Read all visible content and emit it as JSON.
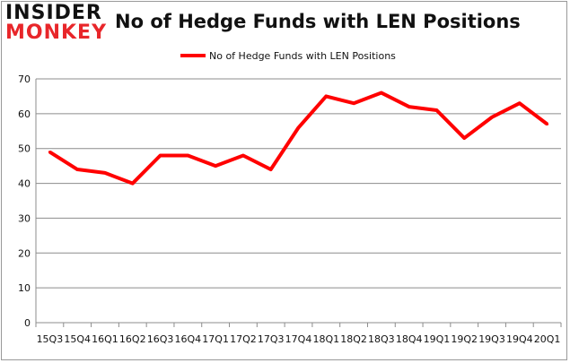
{
  "logo": {
    "line1": "INSIDER",
    "line2": "MONKEY"
  },
  "chart_data": {
    "type": "line",
    "title": "No of Hedge Funds with LEN Positions",
    "categories": [
      "15Q3",
      "15Q4",
      "16Q1",
      "16Q2",
      "16Q3",
      "16Q4",
      "17Q1",
      "17Q2",
      "17Q3",
      "17Q4",
      "18Q1",
      "18Q2",
      "18Q3",
      "18Q4",
      "19Q1",
      "19Q2",
      "19Q3",
      "19Q4",
      "20Q1"
    ],
    "series": [
      {
        "name": "No of Hedge Funds with LEN Positions",
        "color": "#ff0000",
        "values": [
          49,
          44,
          43,
          40,
          48,
          48,
          45,
          48,
          44,
          56,
          65,
          63,
          66,
          62,
          61,
          53,
          59,
          63,
          57
        ]
      }
    ],
    "ylim": [
      0,
      70
    ],
    "yticks": [
      0,
      10,
      20,
      30,
      40,
      50,
      60,
      70
    ],
    "grid": true,
    "legend": "top-center",
    "xlabel": "",
    "ylabel": ""
  }
}
